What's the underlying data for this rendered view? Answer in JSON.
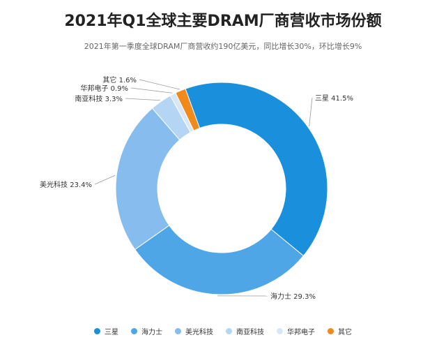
{
  "chart_data": {
    "type": "pie",
    "title": "2021年Q1全球主要DRAM厂商营收市场份额",
    "subtitle": "2021年第一季度全球DRAM厂商营收约190亿美元，同比增长30%，环比增长9%",
    "categories": [
      "三星",
      "海力士",
      "美光科技",
      "南亚科技",
      "华邦电子",
      "其它"
    ],
    "values": [
      41.5,
      29.3,
      23.4,
      3.3,
      0.9,
      1.6
    ],
    "labels": [
      "三星 41.5%",
      "海力士 29.3%",
      "美光科技 23.4%",
      "南亚科技 3.3%",
      "华邦电子 0.9%",
      "其它 1.6%"
    ],
    "colors": [
      "#1a8fdc",
      "#4ea6e6",
      "#86bdee",
      "#b4d5f4",
      "#d6e8f8",
      "#f08a1c"
    ],
    "unit": "%",
    "donut": true,
    "legend_position": "bottom"
  }
}
